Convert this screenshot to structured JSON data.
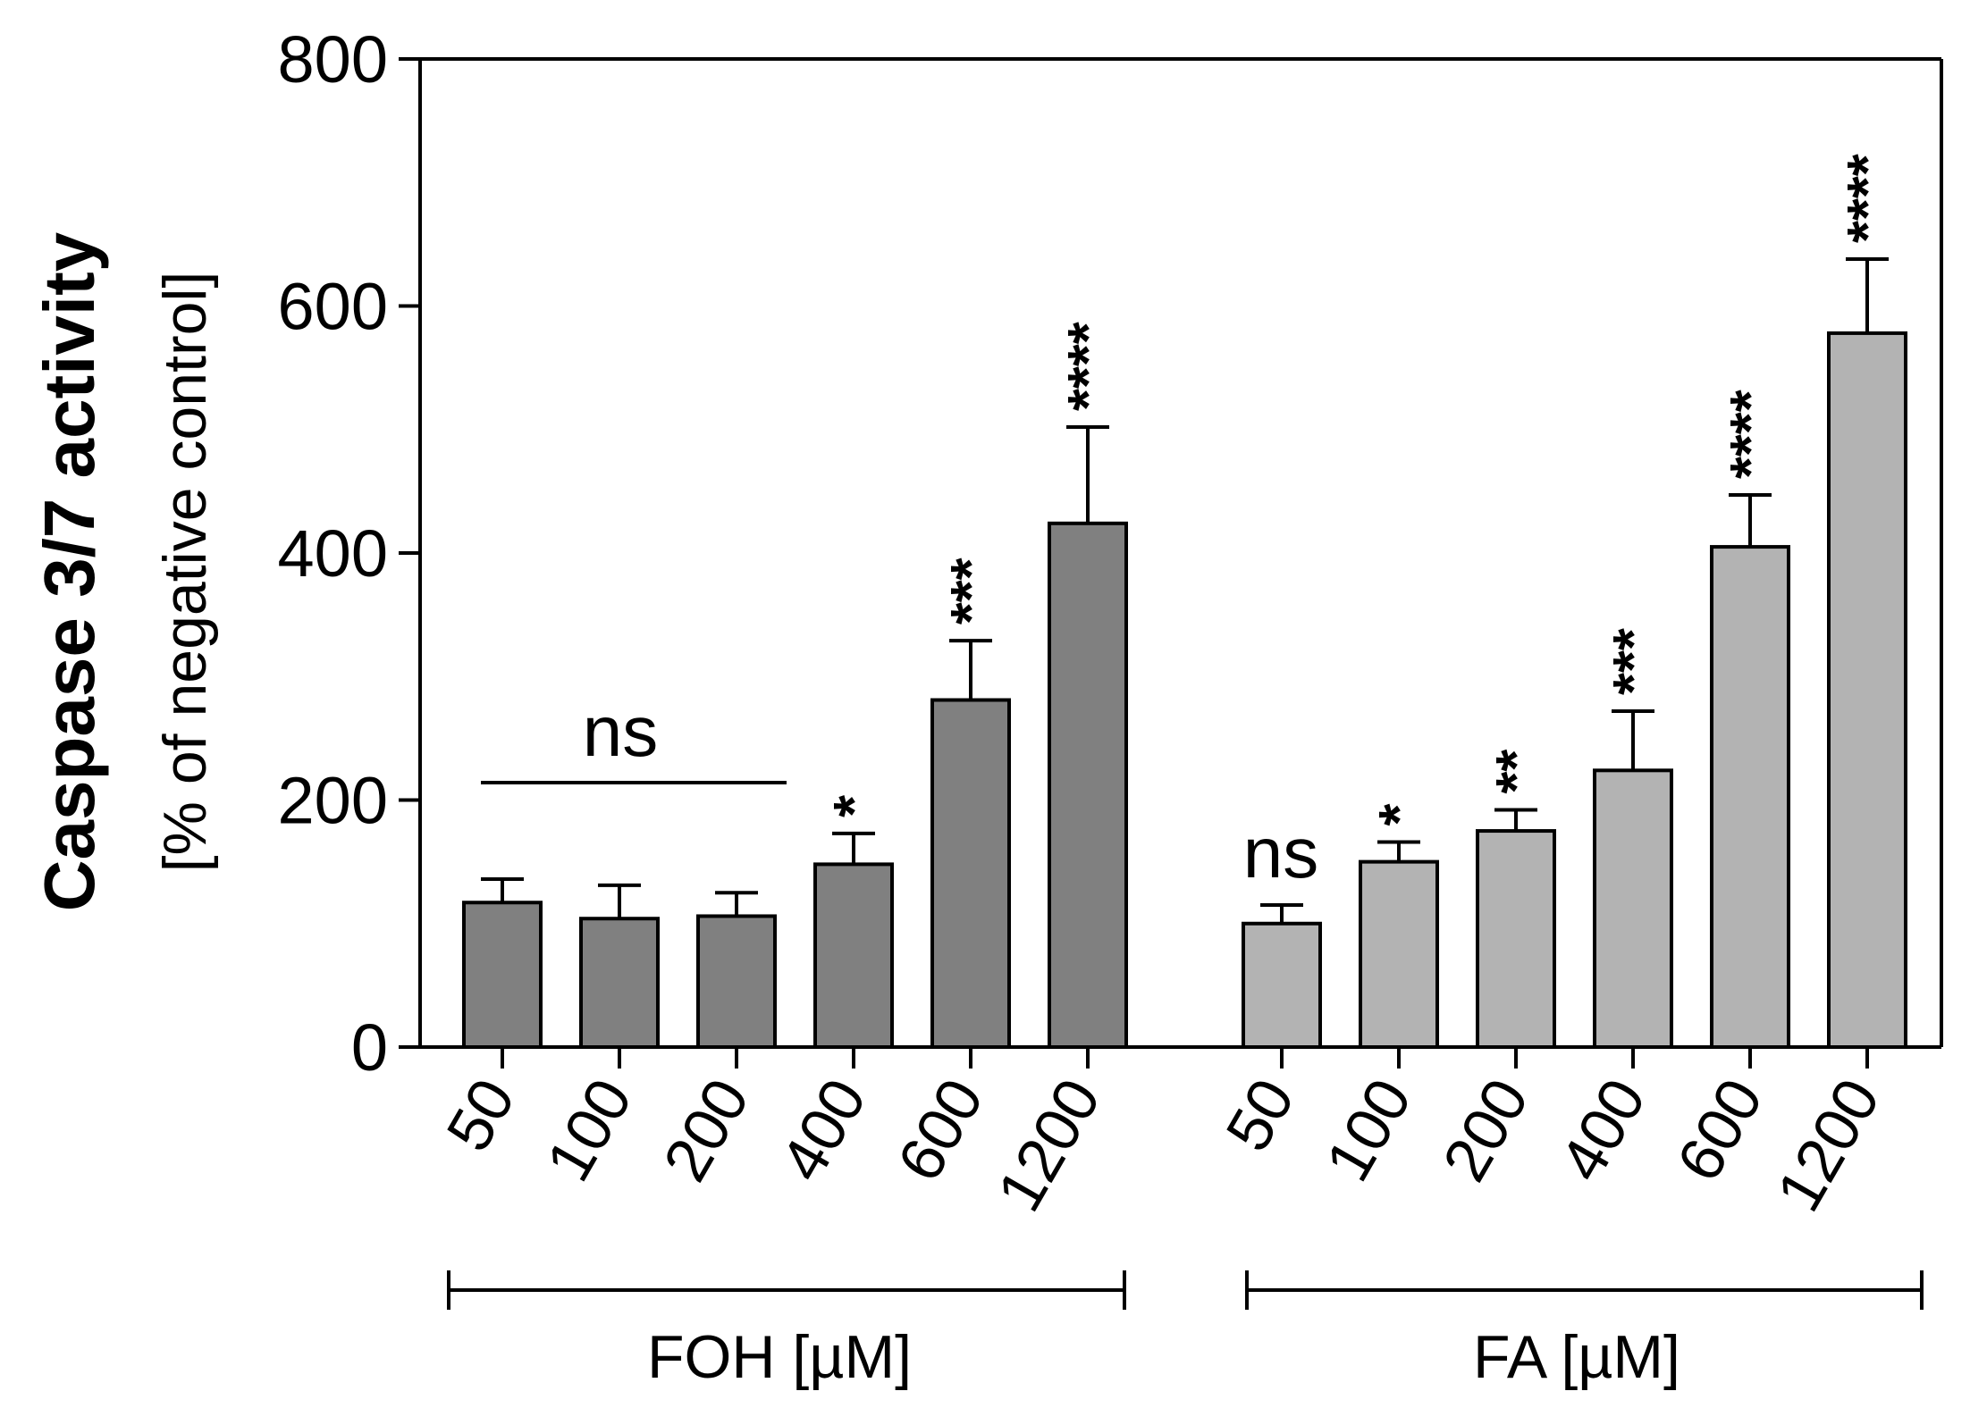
{
  "chart_data": {
    "type": "bar",
    "ylabel_bold": "Caspase 3/7 activity",
    "ylabel": "[% of negative control]",
    "ylim": [
      0,
      800
    ],
    "yticks": [
      "0",
      "200",
      "400",
      "600",
      "800"
    ],
    "grid": false,
    "groups": [
      {
        "name": "FOH [µM]",
        "color": "#808080",
        "categories": [
          "50",
          "100",
          "200",
          "400",
          "600",
          "1200"
        ],
        "values": [
          117,
          104,
          106,
          148,
          281,
          424
        ],
        "errors": [
          19,
          27,
          19,
          25,
          48,
          78
        ],
        "significance": [
          "",
          "",
          "",
          "*",
          "***",
          "****"
        ]
      },
      {
        "name": "FA [µM]",
        "color": "#b3b3b3",
        "categories": [
          "50",
          "100",
          "200",
          "400",
          "600",
          "1200"
        ],
        "values": [
          100,
          150,
          175,
          224,
          405,
          578
        ],
        "errors": [
          15,
          16,
          17,
          48,
          42,
          60
        ],
        "significance": [
          "",
          "*",
          "**",
          "***",
          "****",
          "****"
        ]
      }
    ],
    "annotations": {
      "foh_ns_label": "ns",
      "fa_ns_label": "ns"
    }
  }
}
